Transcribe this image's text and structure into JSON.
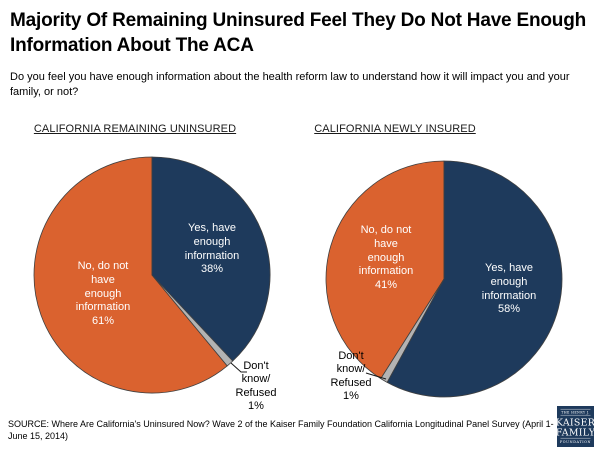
{
  "header": {
    "title": "Majority Of Remaining Uninsured Feel They Do Not Have Enough Information About The ACA",
    "subtitle": "Do you feel you have enough information about the health reform law to understand how it will impact you and your family, or not?"
  },
  "source": "SOURCE: Where Are California's Uninsured Now? Wave 2 of the Kaiser Family Foundation California Longitudinal Panel Survey (April 1- June 15, 2014)",
  "logo": {
    "line1": "THE HENRY J.",
    "line2": "KAISER",
    "line3": "FAMILY",
    "line4": "FOUNDATION",
    "background": "#1E3A5C",
    "text_color": "#FFFFFF"
  },
  "colors": {
    "navy": "#1E3A5C",
    "orange": "#DA622F",
    "gray": "#B3B3B3",
    "slice_outline": "#404040",
    "leader_line": "#1a1a1a"
  },
  "chart_data": [
    {
      "type": "pie",
      "title": "CALIFORNIA REMAINING UNINSURED",
      "start_angle_deg": 0,
      "direction": "clockwise",
      "slices": [
        {
          "label": "Yes, have enough information",
          "pct": 38,
          "color": "#1E3A5C",
          "label_lines": [
            "Yes, have",
            "enough",
            "information",
            "38%"
          ],
          "label_color": "#FFFFFF"
        },
        {
          "label": "Don't know/Refused",
          "pct": 1,
          "color": "#B3B3B3",
          "label_lines": [
            "Don't",
            "know/",
            "Refused",
            "1%"
          ],
          "label_color": "#000000",
          "label_outside": true
        },
        {
          "label": "No, do not have enough information",
          "pct": 61,
          "color": "#DA622F",
          "label_lines": [
            "No, do not",
            "have",
            "enough",
            "information",
            "61%"
          ],
          "label_color": "#FFFFFF"
        }
      ]
    },
    {
      "type": "pie",
      "title": "CALIFORNIA NEWLY INSURED",
      "start_angle_deg": 0,
      "direction": "clockwise",
      "slices": [
        {
          "label": "Yes, have enough information",
          "pct": 58,
          "color": "#1E3A5C",
          "label_lines": [
            "Yes, have",
            "enough",
            "information",
            "58%"
          ],
          "label_color": "#FFFFFF"
        },
        {
          "label": "Don't know/Refused",
          "pct": 1,
          "color": "#B3B3B3",
          "label_lines": [
            "Don't",
            "know/",
            "Refused",
            "1%"
          ],
          "label_color": "#000000",
          "label_outside": true
        },
        {
          "label": "No, do not have enough information",
          "pct": 41,
          "color": "#DA622F",
          "label_lines": [
            "No, do not",
            "have",
            "enough",
            "information",
            "41%"
          ],
          "label_color": "#FFFFFF"
        }
      ]
    }
  ]
}
